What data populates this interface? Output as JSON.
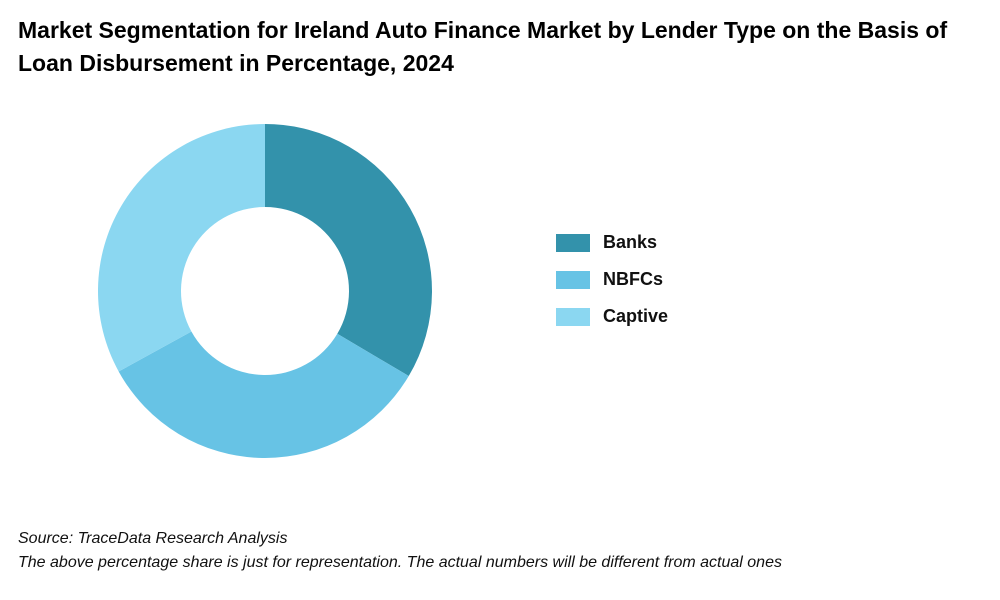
{
  "chart_data": {
    "type": "pie",
    "title": "Market Segmentation for Ireland Auto Finance Market by Lender Type on the Basis of Loan Disbursement in Percentage, 2024",
    "labels": [
      "Banks",
      "NBFCs",
      "Captive"
    ],
    "values": [
      33.5,
      33.5,
      33.0
    ],
    "colors": [
      "#3392AB",
      "#67C3E5",
      "#8BD7F1"
    ],
    "donut": true,
    "legend_position": "right",
    "start_angle": "top, clockwise"
  },
  "footnote": {
    "source": "Source: TraceData Research Analysis",
    "disclaimer": "The above percentage share is just for representation. The actual numbers will be different from actual ones"
  }
}
